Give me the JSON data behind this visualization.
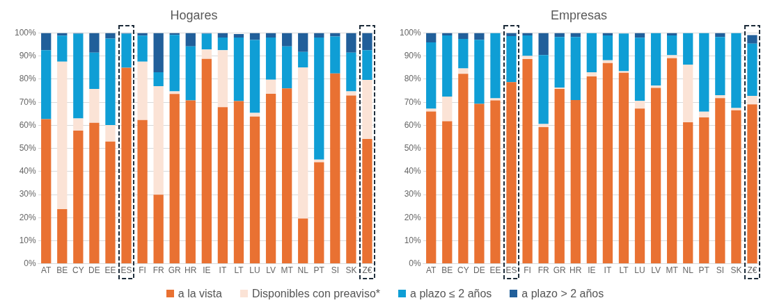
{
  "chart_data": [
    {
      "type": "bar",
      "title": "Hogares",
      "stacked": true,
      "legend": "bottom",
      "grid": "y",
      "categories": [
        "AT",
        "BE",
        "CY",
        "DE",
        "EE",
        "ES",
        "FI",
        "FR",
        "GR",
        "HR",
        "IE",
        "IT",
        "LT",
        "LU",
        "LV",
        "MT",
        "NL",
        "PT",
        "SI",
        "SK",
        "Z€"
      ],
      "ylim": [
        0,
        100
      ],
      "yticks": [
        {
          "value": 0,
          "label": "0%"
        },
        {
          "value": 10,
          "label": "10%"
        },
        {
          "value": 20,
          "label": "20%"
        },
        {
          "value": 30,
          "label": "30%"
        },
        {
          "value": 40,
          "label": "40%"
        },
        {
          "value": 50,
          "label": "50%"
        },
        {
          "value": 60,
          "label": "60%"
        },
        {
          "value": 70,
          "label": "70%"
        },
        {
          "value": 80,
          "label": "80%"
        },
        {
          "value": 90,
          "label": "90%"
        },
        {
          "value": 100,
          "label": "100%"
        }
      ],
      "series": [
        {
          "name": "a la vista",
          "color": "#e97132",
          "values": [
            62.7,
            23.7,
            57.7,
            61.1,
            53.0,
            85.0,
            62.3,
            29.9,
            73.6,
            70.8,
            88.8,
            67.9,
            70.5,
            63.8,
            73.7,
            76.0,
            19.6,
            44.0,
            82.5,
            72.9,
            54.1
          ]
        },
        {
          "name": "Disponibles con preaviso*",
          "color": "#fbe3d6",
          "values": [
            0,
            63.9,
            5.3,
            14.7,
            7.1,
            0,
            25.3,
            47.1,
            1.1,
            0,
            4.1,
            24.7,
            null,
            1.6,
            6.1,
            0,
            65.5,
            1.1,
            0,
            1.8,
            25.6
          ]
        },
        {
          "name": "a plazo ≤ 2 años",
          "color": "#0f9ed5",
          "values": [
            29.9,
            11.3,
            36.7,
            15.7,
            37.5,
            14.7,
            11.3,
            6.0,
            24.5,
            23.4,
            6.8,
            5.5,
            27.6,
            31.6,
            18.3,
            18.2,
            6.7,
            53.0,
            16.0,
            16.8,
            12.9
          ]
        },
        {
          "name": "a plazo > 2 años",
          "color": "#215f9a",
          "values": [
            7.4,
            1.1,
            0.3,
            8.5,
            2.4,
            0.3,
            1.1,
            17.0,
            0.8,
            5.8,
            0.3,
            1.9,
            1.5,
            3.0,
            1.9,
            5.8,
            8.2,
            1.9,
            1.5,
            8.5,
            7.4
          ]
        }
      ]
    },
    {
      "type": "bar",
      "title": "Empresas",
      "stacked": true,
      "grid": "y",
      "categories": [
        "AT",
        "BE",
        "CY",
        "DE",
        "EE",
        "ES",
        "FI",
        "FR",
        "GR",
        "HR",
        "IE",
        "IT",
        "LT",
        "LU",
        "LV",
        "MT",
        "NL",
        "PT",
        "SI",
        "SK",
        "Z€"
      ],
      "ylim": [
        0,
        100
      ],
      "yticks": [
        {
          "value": 0,
          "label": "0%"
        },
        {
          "value": 10,
          "label": "10%"
        },
        {
          "value": 20,
          "label": "20%"
        },
        {
          "value": 30,
          "label": "30%"
        },
        {
          "value": 40,
          "label": "40%"
        },
        {
          "value": 50,
          "label": "50%"
        },
        {
          "value": 60,
          "label": "60%"
        },
        {
          "value": 70,
          "label": "70%"
        },
        {
          "value": 80,
          "label": "80%"
        },
        {
          "value": 90,
          "label": "90%"
        },
        {
          "value": 100,
          "label": "100%"
        }
      ],
      "series": [
        {
          "color": "#e97132",
          "values": [
            66.0,
            61.8,
            82.3,
            69.3,
            70.8,
            78.7,
            88.7,
            59.2,
            75.8,
            71.0,
            81.2,
            87.0,
            82.8,
            67.3,
            76.2,
            89.1,
            61.3,
            63.4,
            71.8,
            66.5,
            69.1
          ]
        },
        {
          "color": "#fbe3d6",
          "values": [
            1.2,
            10.7,
            2.4,
            0,
            0.9,
            0,
            1.4,
            1.4,
            0.6,
            0,
            1.8,
            1.2,
            0.7,
            3.3,
            1.0,
            1.3,
            25.0,
            2.5,
            1.3,
            1.0,
            3.7
          ]
        },
        {
          "color": "#0f9ed5",
          "values": [
            28.8,
            26.5,
            12.8,
            27.8,
            28.3,
            20.0,
            8.9,
            29.9,
            21.9,
            27.3,
            17.0,
            10.8,
            16.3,
            27.4,
            22.8,
            8.6,
            13.7,
            34.1,
            25.2,
            32.5,
            22.6
          ]
        },
        {
          "color": "#215f9a",
          "values": [
            4.0,
            1.0,
            2.5,
            2.9,
            0,
            1.3,
            1.0,
            9.5,
            1.7,
            1.7,
            0,
            1.0,
            null,
            2.0,
            0,
            1.0,
            0,
            0,
            1.7,
            0,
            3.7
          ]
        }
      ]
    }
  ]
}
